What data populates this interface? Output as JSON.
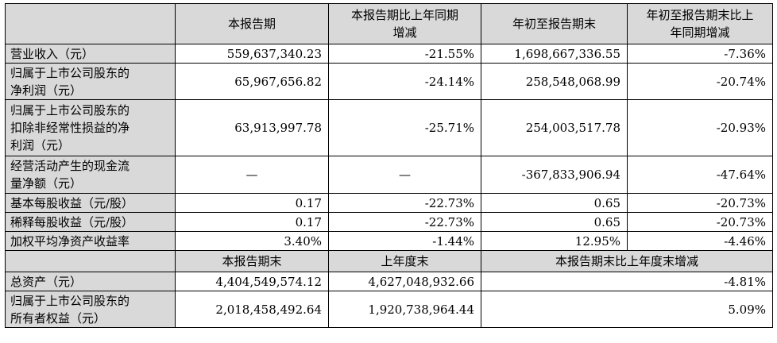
{
  "header": {
    "col1": "本报告期",
    "col2_line1": "本报告期比上年同期",
    "col2_line2": "增减",
    "col3": "年初至报告期末",
    "col4_line1": "年初至报告期末比上",
    "col4_line2": "年同期增减"
  },
  "rows": [
    {
      "label_lines": [
        "营业收入（元）"
      ],
      "v1": "559,637,340.23",
      "v2": "-21.55%",
      "v3": "1,698,667,336.55",
      "v4": "-7.36%"
    },
    {
      "label_lines": [
        "归属于上市公司股东的",
        "净利润（元）"
      ],
      "v1": "65,967,656.82",
      "v2": "-24.14%",
      "v3": "258,548,068.99",
      "v4": "-20.74%"
    },
    {
      "label_lines": [
        "归属于上市公司股东的",
        "扣除非经常性损益的净",
        "利润（元）"
      ],
      "v1": "63,913,997.78",
      "v2": "-25.71%",
      "v3": "254,003,517.78",
      "v4": "-20.93%"
    },
    {
      "label_lines": [
        "经营活动产生的现金流",
        "量净额（元）"
      ],
      "v1": "—",
      "v2": "—",
      "v3": "-367,833,906.94",
      "v4": "-47.64%"
    },
    {
      "label_lines": [
        "基本每股收益（元/股）"
      ],
      "v1": "0.17",
      "v2": "-22.73%",
      "v3": "0.65",
      "v4": "-20.73%"
    },
    {
      "label_lines": [
        "稀释每股收益（元/股）"
      ],
      "v1": "0.17",
      "v2": "-22.73%",
      "v3": "0.65",
      "v4": "-20.73%"
    },
    {
      "label_lines": [
        "加权平均净资产收益率"
      ],
      "v1": "3.40%",
      "v2": "-1.44%",
      "v3": "12.95%",
      "v4": "-4.46%"
    }
  ],
  "header2": {
    "col1": "本报告期末",
    "col2": "上年度末",
    "col3": "本报告期末比上年度末增减"
  },
  "rows2": [
    {
      "label_lines": [
        "总资产（元）"
      ],
      "v1": "4,404,549,574.12",
      "v2": "4,627,048,932.66",
      "v3": "-4.81%"
    },
    {
      "label_lines": [
        "归属于上市公司股东的",
        "所有者权益（元）"
      ],
      "v1": "2,018,458,492.64",
      "v2": "1,920,738,964.44",
      "v3": "5.09%"
    }
  ]
}
